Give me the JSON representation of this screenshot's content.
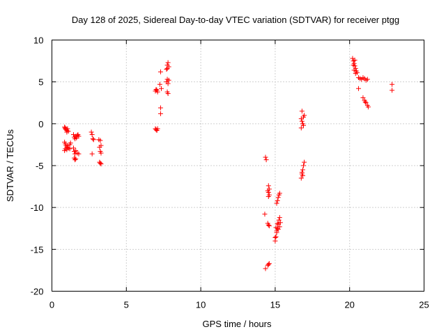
{
  "chart_data": {
    "type": "scatter",
    "title": "Day 128 of 2025, Sidereal Day-to-day VTEC variation (SDTVAR) for receiver ptgg",
    "xlabel": "GPS time / hours",
    "ylabel": "SDTVAR / TECUs",
    "xlim": [
      0,
      25
    ],
    "ylim": [
      -20,
      10
    ],
    "xticks": [
      0,
      5,
      10,
      15,
      20,
      25
    ],
    "yticks": [
      -20,
      -15,
      -10,
      -5,
      0,
      5,
      10
    ],
    "xtick_labels": [
      "0",
      "5",
      "10",
      "15",
      "20",
      "25"
    ],
    "ytick_labels": [
      "-20",
      "-15",
      "-10",
      "-5",
      "0",
      "5",
      "10"
    ],
    "grid": true,
    "marker": "+",
    "color": "#ff0000",
    "series": [
      {
        "name": "SDTVAR",
        "points": [
          [
            0.85,
            -0.4
          ],
          [
            0.9,
            -0.6
          ],
          [
            0.95,
            -0.7
          ],
          [
            1.0,
            -0.8
          ],
          [
            1.05,
            -0.6
          ],
          [
            1.1,
            -0.9
          ],
          [
            1.0,
            -1.0
          ],
          [
            0.9,
            -0.5
          ],
          [
            0.85,
            -2.2
          ],
          [
            0.9,
            -2.4
          ],
          [
            0.95,
            -2.6
          ],
          [
            1.0,
            -2.8
          ],
          [
            1.05,
            -2.6
          ],
          [
            1.1,
            -2.9
          ],
          [
            1.2,
            -2.5
          ],
          [
            1.25,
            -2.3
          ],
          [
            0.85,
            -3.2
          ],
          [
            0.9,
            -3.0
          ],
          [
            1.0,
            -3.1
          ],
          [
            1.1,
            -2.9
          ],
          [
            1.2,
            -3.0
          ],
          [
            1.45,
            -1.3
          ],
          [
            1.5,
            -1.6
          ],
          [
            1.6,
            -1.5
          ],
          [
            1.7,
            -1.4
          ],
          [
            1.8,
            -1.5
          ],
          [
            1.55,
            -1.8
          ],
          [
            1.65,
            -1.7
          ],
          [
            1.75,
            -1.3
          ],
          [
            1.45,
            -2.9
          ],
          [
            1.5,
            -3.3
          ],
          [
            1.55,
            -3.6
          ],
          [
            1.6,
            -3.2
          ],
          [
            1.7,
            -3.5
          ],
          [
            1.8,
            -3.6
          ],
          [
            1.5,
            -4.1
          ],
          [
            1.55,
            -4.3
          ],
          [
            1.6,
            -4.2
          ],
          [
            2.65,
            -1.0
          ],
          [
            2.7,
            -1.3
          ],
          [
            2.75,
            -1.8
          ],
          [
            2.8,
            -1.9
          ],
          [
            2.7,
            -3.6
          ],
          [
            3.15,
            -1.9
          ],
          [
            3.25,
            -2.0
          ],
          [
            3.3,
            -2.6
          ],
          [
            3.2,
            -2.8
          ],
          [
            3.25,
            -3.3
          ],
          [
            3.3,
            -3.5
          ],
          [
            3.2,
            -4.6
          ],
          [
            3.25,
            -4.7
          ],
          [
            3.3,
            -4.8
          ],
          [
            6.95,
            -0.6
          ],
          [
            7.0,
            -0.7
          ],
          [
            7.05,
            -0.8
          ],
          [
            7.1,
            -0.6
          ],
          [
            6.95,
            3.9
          ],
          [
            7.0,
            4.1
          ],
          [
            7.05,
            4.0
          ],
          [
            7.1,
            3.8
          ],
          [
            7.3,
            6.2
          ],
          [
            7.25,
            4.7
          ],
          [
            7.35,
            4.2
          ],
          [
            7.3,
            1.9
          ],
          [
            7.3,
            1.2
          ],
          [
            7.7,
            6.5
          ],
          [
            7.75,
            7.0
          ],
          [
            7.8,
            7.3
          ],
          [
            7.85,
            6.8
          ],
          [
            7.75,
            6.6
          ],
          [
            7.7,
            5.0
          ],
          [
            7.75,
            5.3
          ],
          [
            7.8,
            4.8
          ],
          [
            7.85,
            5.2
          ],
          [
            7.75,
            3.8
          ],
          [
            7.8,
            3.6
          ],
          [
            14.35,
            -4.0
          ],
          [
            14.4,
            -4.3
          ],
          [
            14.3,
            -10.8
          ],
          [
            14.35,
            -17.3
          ],
          [
            14.55,
            -7.4
          ],
          [
            14.6,
            -7.8
          ],
          [
            14.55,
            -8.2
          ],
          [
            14.6,
            -8.5
          ],
          [
            14.5,
            -8.0
          ],
          [
            14.55,
            -8.7
          ],
          [
            14.5,
            -11.9
          ],
          [
            14.55,
            -12.1
          ],
          [
            14.6,
            -12.2
          ],
          [
            14.55,
            -16.8
          ],
          [
            14.6,
            -16.7
          ],
          [
            14.5,
            -16.9
          ],
          [
            15.0,
            -14.0
          ],
          [
            15.05,
            -13.5
          ],
          [
            15.1,
            -13.0
          ],
          [
            15.15,
            -12.5
          ],
          [
            15.2,
            -12.0
          ],
          [
            15.25,
            -11.5
          ],
          [
            15.3,
            -11.2
          ],
          [
            15.35,
            -11.8
          ],
          [
            15.0,
            -13.6
          ],
          [
            15.1,
            -12.8
          ],
          [
            15.2,
            -12.6
          ],
          [
            15.3,
            -12.3
          ],
          [
            15.15,
            -11.9
          ],
          [
            15.05,
            -12.4
          ],
          [
            15.1,
            -9.5
          ],
          [
            15.15,
            -9.2
          ],
          [
            15.2,
            -8.8
          ],
          [
            15.25,
            -8.5
          ],
          [
            15.3,
            -8.3
          ],
          [
            16.75,
            -6.5
          ],
          [
            16.8,
            -6.0
          ],
          [
            16.85,
            -5.5
          ],
          [
            16.9,
            -5.0
          ],
          [
            16.95,
            -4.6
          ],
          [
            16.8,
            -5.8
          ],
          [
            16.85,
            -6.2
          ],
          [
            16.75,
            0.6
          ],
          [
            16.8,
            0.3
          ],
          [
            16.85,
            0.0
          ],
          [
            16.9,
            -0.2
          ],
          [
            16.95,
            1.0
          ],
          [
            16.8,
            1.5
          ],
          [
            16.9,
            0.8
          ],
          [
            16.75,
            -0.5
          ],
          [
            20.2,
            7.8
          ],
          [
            20.25,
            7.5
          ],
          [
            20.3,
            7.2
          ],
          [
            20.35,
            6.9
          ],
          [
            20.4,
            6.6
          ],
          [
            20.45,
            6.3
          ],
          [
            20.5,
            6.1
          ],
          [
            20.3,
            6.4
          ],
          [
            20.25,
            7.0
          ],
          [
            20.35,
            7.6
          ],
          [
            20.4,
            6.0
          ],
          [
            20.6,
            5.5
          ],
          [
            20.7,
            5.4
          ],
          [
            20.8,
            5.3
          ],
          [
            20.9,
            5.5
          ],
          [
            21.0,
            5.4
          ],
          [
            21.1,
            5.2
          ],
          [
            21.2,
            5.3
          ],
          [
            20.6,
            4.2
          ],
          [
            20.9,
            3.1
          ],
          [
            21.0,
            2.8
          ],
          [
            21.1,
            2.5
          ],
          [
            21.2,
            2.2
          ],
          [
            21.25,
            2.0
          ],
          [
            21.05,
            2.6
          ],
          [
            22.85,
            4.7
          ],
          [
            22.85,
            4.0
          ]
        ]
      }
    ]
  }
}
